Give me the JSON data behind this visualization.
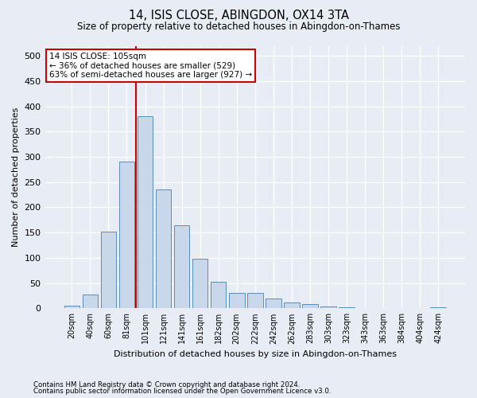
{
  "title": "14, ISIS CLOSE, ABINGDON, OX14 3TA",
  "subtitle": "Size of property relative to detached houses in Abingdon-on-Thames",
  "xlabel": "Distribution of detached houses by size in Abingdon-on-Thames",
  "ylabel": "Number of detached properties",
  "footnote1": "Contains HM Land Registry data © Crown copyright and database right 2024.",
  "footnote2": "Contains public sector information licensed under the Open Government Licence v3.0.",
  "bar_labels": [
    "20sqm",
    "40sqm",
    "60sqm",
    "81sqm",
    "101sqm",
    "121sqm",
    "141sqm",
    "161sqm",
    "182sqm",
    "202sqm",
    "222sqm",
    "242sqm",
    "262sqm",
    "283sqm",
    "303sqm",
    "323sqm",
    "343sqm",
    "363sqm",
    "384sqm",
    "404sqm",
    "424sqm"
  ],
  "bar_values": [
    5,
    28,
    152,
    290,
    380,
    235,
    165,
    98,
    52,
    30,
    30,
    20,
    12,
    8,
    3,
    2,
    1,
    0,
    0,
    0,
    2
  ],
  "bar_color": "#c8d8ea",
  "bar_edgecolor": "#5b8db8",
  "background_color": "#e8edf5",
  "grid_color": "#ffffff",
  "ylim": [
    0,
    520
  ],
  "yticks": [
    0,
    50,
    100,
    150,
    200,
    250,
    300,
    350,
    400,
    450,
    500
  ],
  "vline_color": "#cc0000",
  "annotation_text": "14 ISIS CLOSE: 105sqm\n← 36% of detached houses are smaller (529)\n63% of semi-detached houses are larger (927) →",
  "annotation_box_color": "#ffffff",
  "annotation_box_edgecolor": "#cc0000",
  "figsize": [
    6.0,
    5.0
  ],
  "dpi": 100
}
